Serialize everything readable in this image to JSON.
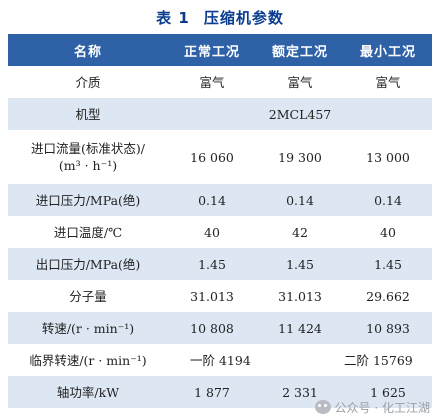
{
  "caption": {
    "number": "表 1",
    "title": "压缩机参数"
  },
  "table": {
    "headers": [
      "名称",
      "正常工况",
      "额定工况",
      "最小工况"
    ],
    "rows": [
      {
        "name": "介质",
        "normal": "富气",
        "rated": "富气",
        "minimum": "富气"
      },
      {
        "name": "机型",
        "merged": "2MCL457"
      },
      {
        "name_line1": "进口流量(标准状态)/",
        "name_line2": "(m³ · h⁻¹)",
        "normal": "16 060",
        "rated": "19 300",
        "minimum": "13 000"
      },
      {
        "name": "进口压力/MPa(绝)",
        "normal": "0.14",
        "rated": "0.14",
        "minimum": "0.14"
      },
      {
        "name": "进口温度/℃",
        "normal": "40",
        "rated": "42",
        "minimum": "40"
      },
      {
        "name": "出口压力/MPa(绝)",
        "normal": "1.45",
        "rated": "1.45",
        "minimum": "1.45"
      },
      {
        "name": "分子量",
        "normal": "31.013",
        "rated": "31.013",
        "minimum": "29.662"
      },
      {
        "name": "转速/(r · min⁻¹)",
        "normal": "10 808",
        "rated": "11 424",
        "minimum": "10 893"
      },
      {
        "name": "临界转速/(r · min⁻¹)",
        "first_order": "一阶 4194",
        "second_order": "二阶 15769"
      },
      {
        "name": "轴功率/kW",
        "normal": "1 877",
        "rated": "2 331",
        "minimum": "1 625"
      }
    ]
  },
  "watermark": {
    "text": "公众号 · 化工江湖",
    "icon": "wechat-icon"
  }
}
